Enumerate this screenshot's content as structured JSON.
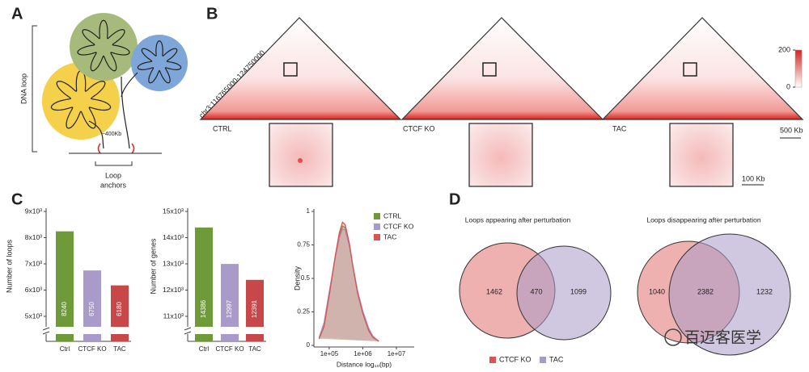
{
  "figure": {
    "panel_labels": [
      "A",
      "B",
      "C",
      "D"
    ],
    "A": {
      "axis_label": "DNA loop",
      "distance": "~400Kb",
      "anchor_label": [
        "Loop",
        "anchors"
      ]
    },
    "B": {
      "region": "chr3:116765000-124750000",
      "samples": [
        "CTRL",
        "CTCF KO",
        "TAC"
      ],
      "colorbar_ticks": [
        0,
        200
      ],
      "scale_bar": "500 Kb",
      "zoom_scale_bar": "100 Kb"
    },
    "venn_legend": [
      {
        "name": "CTCF KO",
        "color": "#d9534f"
      },
      {
        "name": "TAC",
        "color": "#a99bc9"
      }
    ],
    "watermark": "百迈客医学"
  },
  "chart_data": [
    {
      "type": "bar",
      "ylabel": "Number of loops",
      "categories": [
        "Ctrl",
        "CTCF KO",
        "TAC"
      ],
      "values": [
        8240,
        6750,
        6180
      ],
      "colors": [
        "#6e9a3a",
        "#a99bc9",
        "#c8484a"
      ],
      "ylim": [
        4600,
        9000
      ],
      "yticks": [
        {
          "value": 5000,
          "label": "5x10³"
        },
        {
          "value": 6000,
          "label": "6x10³"
        },
        {
          "value": 7000,
          "label": "7x10³"
        },
        {
          "value": 8000,
          "label": "8x10³"
        },
        {
          "value": 9000,
          "label": "9x10³"
        }
      ]
    },
    {
      "type": "bar",
      "ylabel": "Number of genes",
      "categories": [
        "Ctrl",
        "CTCF KO",
        "TAC"
      ],
      "values": [
        14386,
        12997,
        12391
      ],
      "colors": [
        "#6e9a3a",
        "#a99bc9",
        "#c8484a"
      ],
      "ylim": [
        10600,
        15000
      ],
      "yticks": [
        {
          "value": 11000,
          "label": "11x10³"
        },
        {
          "value": 12000,
          "label": "12x10³"
        },
        {
          "value": 13000,
          "label": "13x10³"
        },
        {
          "value": 14000,
          "label": "14x10³"
        },
        {
          "value": 15000,
          "label": "15x10³"
        }
      ]
    },
    {
      "type": "line",
      "ylabel": "Density",
      "xlabel": "Distance log₁₀(bp)",
      "log_x": true,
      "x": [
        50000,
        70000,
        100000,
        150000,
        200000,
        250000,
        300000,
        400000,
        500000,
        700000,
        1000000,
        1500000,
        2000000,
        3000000
      ],
      "series": [
        {
          "name": "CTRL",
          "color": "#6e9a3a",
          "values": [
            0.05,
            0.15,
            0.38,
            0.65,
            0.82,
            0.89,
            0.88,
            0.75,
            0.6,
            0.4,
            0.25,
            0.12,
            0.07,
            0.03
          ]
        },
        {
          "name": "CTCF KO",
          "color": "#a99bc9",
          "values": [
            0.06,
            0.17,
            0.4,
            0.65,
            0.8,
            0.87,
            0.86,
            0.74,
            0.6,
            0.41,
            0.26,
            0.13,
            0.07,
            0.03
          ]
        },
        {
          "name": "TAC",
          "color": "#d9534f",
          "values": [
            0.05,
            0.14,
            0.37,
            0.66,
            0.84,
            0.92,
            0.9,
            0.76,
            0.6,
            0.39,
            0.24,
            0.11,
            0.06,
            0.03
          ]
        }
      ],
      "xlim": [
        35000,
        34000000
      ],
      "ylim": [
        0,
        1
      ],
      "xticks": [
        {
          "value": 100000,
          "label": "1e+05"
        },
        {
          "value": 1000000,
          "label": "1e+06"
        },
        {
          "value": 10000000,
          "label": "1e+07"
        }
      ],
      "yticks": [
        0,
        0.25,
        0.5,
        0.75,
        1
      ]
    },
    {
      "type": "venn",
      "title": "Loops appearing after perturbation",
      "values": [
        1462,
        470,
        1099
      ]
    },
    {
      "type": "venn",
      "title": "Loops disappearing after perturbation",
      "values": [
        1040,
        2382,
        1232
      ]
    }
  ]
}
